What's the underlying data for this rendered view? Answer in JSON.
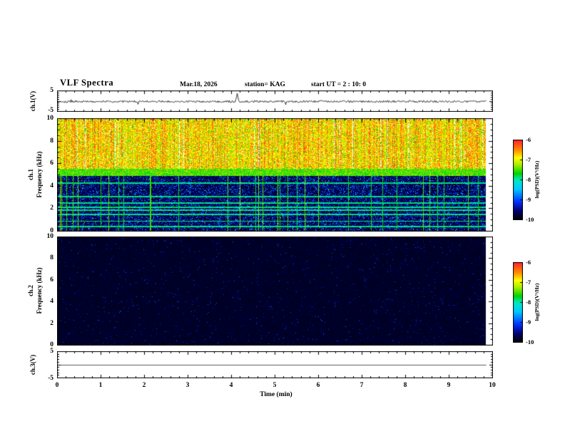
{
  "header": {
    "title": "VLF Spectra",
    "date": "Mar.18, 2026",
    "station": "station= KAG",
    "start_ut": "start UT =  2 : 10: 0"
  },
  "xaxis": {
    "label": "Time (min)",
    "ticks": [
      "0",
      "1",
      "2",
      "3",
      "4",
      "5",
      "6",
      "7",
      "8",
      "9",
      "10"
    ],
    "minutes_of_data": 9.85
  },
  "colorbar": {
    "label": "log(PSD)(V²/Hz)",
    "ticks": [
      "-6",
      "-7",
      "-8",
      "-9",
      "-10"
    ],
    "value_range": [
      -10,
      -6
    ],
    "stops": [
      [
        0,
        "#000006"
      ],
      [
        0.1,
        "#00006a"
      ],
      [
        0.22,
        "#0030ff"
      ],
      [
        0.38,
        "#00c8ff"
      ],
      [
        0.5,
        "#00e8c0"
      ],
      [
        0.58,
        "#00d400"
      ],
      [
        0.7,
        "#b0f000"
      ],
      [
        0.78,
        "#ffff00"
      ],
      [
        0.88,
        "#ff8c00"
      ],
      [
        1,
        "#ff2a2a"
      ]
    ]
  },
  "chart_data": [
    {
      "type": "line",
      "name": "ch.1 waveform",
      "ylabel": "ch.1(V)",
      "ylim": [
        -5,
        5
      ],
      "yticks": [
        "5",
        "-5"
      ],
      "xlim": [
        0,
        10
      ],
      "noise_amp_v": 0.8,
      "spikes_min": [
        4.12
      ],
      "line_color": "#000000",
      "description": "dense noisy trace around 0 V with an isolated spike near 4.1 min"
    },
    {
      "type": "heatmap",
      "name": "ch.1 spectrogram",
      "ylabel_line1": "ch.1",
      "ylabel_line2": "Frequency (kHz)",
      "ylim": [
        0,
        10
      ],
      "yticks": [
        "10",
        "8",
        "6",
        "4",
        "2",
        "0"
      ],
      "xlim": [
        0,
        10
      ],
      "bands": [
        {
          "range_khz": [
            5.55,
            10
          ],
          "psd": "high (-6 to -7)",
          "desc": "intense broadband red/yellow noise with white vertical dropouts"
        },
        {
          "range_khz": [
            4.95,
            5.55
          ],
          "psd": "medium (-8)",
          "desc": "continuous green/yellow band"
        },
        {
          "range_khz": [
            0,
            4.95
          ],
          "psd": "low (-9 to -10)",
          "desc": "dark navy background with blue speckle, cyan tone lines and sporadic green vertical streaks"
        }
      ],
      "tone_lines_khz": [
        0.4,
        0.9,
        1.5,
        1.9,
        2.15,
        2.5,
        3.1,
        4.3
      ]
    },
    {
      "type": "heatmap",
      "name": "ch.2 spectrogram",
      "ylabel_line1": "ch.2",
      "ylabel_line2": "Frequency (kHz)",
      "ylim": [
        0,
        10
      ],
      "yticks": [
        "10",
        "8",
        "6",
        "4",
        "2",
        "0"
      ],
      "xlim": [
        0,
        10
      ],
      "bands": [
        {
          "range_khz": [
            0,
            10
          ],
          "psd": "floor (-10)",
          "desc": "black, essentially no signal, sparse faint dark-blue speckle"
        }
      ]
    },
    {
      "type": "line",
      "name": "ch.3 waveform",
      "ylabel": "ch.3(V)",
      "ylim": [
        -5,
        5
      ],
      "yticks": [
        "5",
        "-5"
      ],
      "xlim": [
        0,
        10
      ],
      "constant_v": 0,
      "line_color": "#000000",
      "description": "flat line at 0 V"
    }
  ]
}
